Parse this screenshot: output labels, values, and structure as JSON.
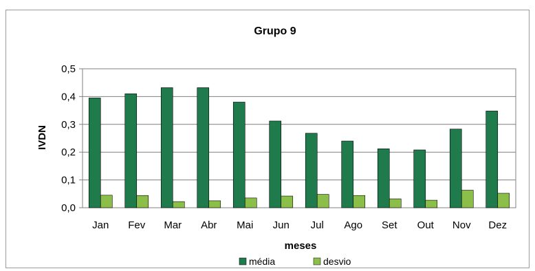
{
  "chart_data": {
    "type": "bar",
    "title": "Grupo 9",
    "xlabel": "meses",
    "ylabel": "IVDN",
    "ylim": [
      0,
      0.5
    ],
    "yticks": [
      "0,0",
      "0,1",
      "0,2",
      "0,3",
      "0,4",
      "0,5"
    ],
    "categories": [
      "Jan",
      "Fev",
      "Mar",
      "Abr",
      "Mai",
      "Jun",
      "Jul",
      "Ago",
      "Set",
      "Out",
      "Nov",
      "Dez"
    ],
    "grid": true,
    "legend_position": "bottom",
    "series": [
      {
        "name": "média",
        "color": "#1f7a4c",
        "values": [
          0.395,
          0.41,
          0.432,
          0.432,
          0.38,
          0.312,
          0.268,
          0.24,
          0.212,
          0.208,
          0.283,
          0.348
        ]
      },
      {
        "name": "desvio",
        "color": "#8cbf4a",
        "values": [
          0.045,
          0.044,
          0.022,
          0.025,
          0.035,
          0.042,
          0.048,
          0.044,
          0.032,
          0.027,
          0.063,
          0.052
        ]
      }
    ]
  }
}
